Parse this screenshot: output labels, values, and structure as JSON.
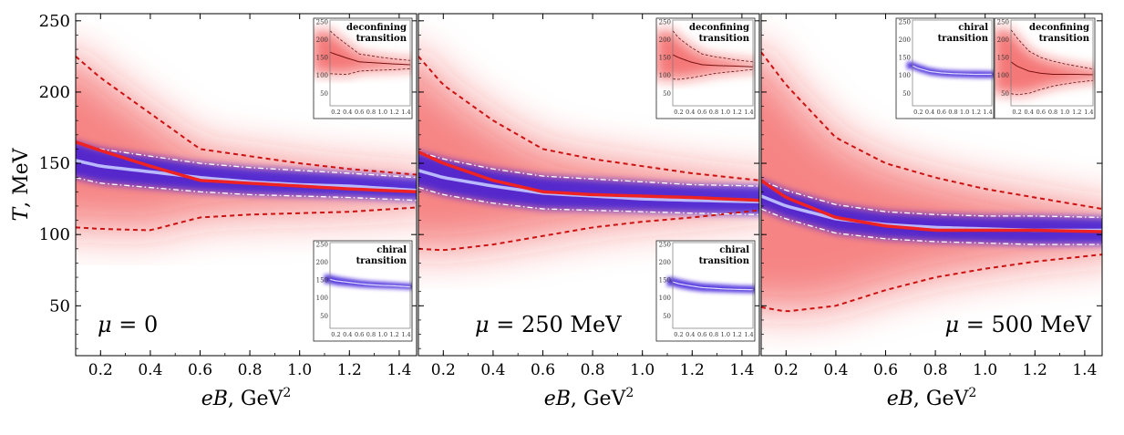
{
  "chart_data": {
    "type": "line",
    "description_axes": {
      "xlabel": "eB, GeV",
      "xlabel_exp": "2",
      "ylabel": "T, MeV",
      "xlim": [
        0.1,
        1.47
      ],
      "ylim": [
        15,
        255
      ],
      "x_ticks": [
        0.2,
        0.4,
        0.6,
        0.8,
        1.0,
        1.2,
        1.4
      ],
      "x_tick_labels": [
        "0.2",
        "0.4",
        "0.6",
        "0.8",
        "1.0",
        "1.2",
        "1.4"
      ],
      "y_ticks": [
        50,
        100,
        150,
        200,
        250
      ],
      "y_tick_labels": [
        "50",
        "100",
        "150",
        "200",
        "250"
      ]
    },
    "inset_axes": {
      "xlim": [
        0.1,
        1.47
      ],
      "ylim": [
        15,
        255
      ],
      "x_tick_labels": [
        "0.2",
        "0.4",
        "0.6",
        "0.8",
        "1.0",
        "1.2",
        "1.4"
      ],
      "y_tick_labels": [
        "50",
        "100",
        "150",
        "200",
        "250"
      ]
    },
    "panels": [
      {
        "label_symbol": "μ",
        "label_value": "= 0",
        "x": [
          0.1,
          0.2,
          0.4,
          0.6,
          0.8,
          1.0,
          1.2,
          1.47
        ],
        "series": [
          {
            "name": "deconfining transition",
            "values": [
              165,
              159,
              148,
              138,
              136,
              134,
              132,
              130
            ]
          },
          {
            "name": "deconfining upper bound",
            "values": [
              225,
              210,
              185,
              160,
              155,
              150,
              146,
              142
            ]
          },
          {
            "name": "deconfining lower bound",
            "values": [
              105,
              104,
              103,
              112,
              114,
              115,
              116,
              119
            ]
          },
          {
            "name": "chiral transition",
            "values": [
              152,
              148,
              144,
              140,
              137,
              135,
              134,
              131
            ]
          },
          {
            "name": "chiral upper bound",
            "values": [
              165,
              160,
              155,
              150,
              147,
              145,
              143,
              140
            ]
          },
          {
            "name": "chiral lower bound",
            "values": [
              140,
              136,
              133,
              130,
              128,
              127,
              126,
              124
            ]
          }
        ],
        "insets": [
          {
            "label": [
              "deconfining",
              "transition"
            ],
            "kind": "deconfining"
          },
          {
            "label": [
              "chiral",
              "transition"
            ],
            "kind": "chiral"
          }
        ]
      },
      {
        "label_symbol": "μ",
        "label_value": "= 250 MeV",
        "x": [
          0.1,
          0.2,
          0.4,
          0.6,
          0.8,
          1.0,
          1.2,
          1.47
        ],
        "series": [
          {
            "name": "deconfining transition",
            "values": [
              158,
              150,
              138,
              130,
              128,
              127,
              126,
              124
            ]
          },
          {
            "name": "deconfining upper bound",
            "values": [
              225,
              205,
              180,
              160,
              153,
              148,
              143,
              138
            ]
          },
          {
            "name": "deconfining lower bound",
            "values": [
              90,
              89,
              93,
              99,
              105,
              109,
              112,
              117
            ]
          },
          {
            "name": "chiral transition",
            "values": [
              145,
              140,
              134,
              129,
              127,
              125,
              124,
              123
            ]
          },
          {
            "name": "chiral upper bound",
            "values": [
              158,
              153,
              146,
              141,
              139,
              137,
              135,
              134
            ]
          },
          {
            "name": "chiral lower bound",
            "values": [
              133,
              128,
              122,
              118,
              117,
              116,
              115,
              114
            ]
          }
        ],
        "insets": [
          {
            "label": [
              "deconfining",
              "transition"
            ],
            "kind": "deconfining"
          },
          {
            "label": [
              "chiral",
              "transition"
            ],
            "kind": "chiral"
          }
        ]
      },
      {
        "label_symbol": "μ",
        "label_value": "= 500 MeV",
        "x": [
          0.1,
          0.2,
          0.4,
          0.6,
          0.8,
          1.0,
          1.2,
          1.47
        ],
        "series": [
          {
            "name": "deconfining transition",
            "values": [
              138,
              126,
              112,
              106,
              103,
              103,
              103,
              102
            ]
          },
          {
            "name": "deconfining upper bound",
            "values": [
              228,
              205,
              168,
              150,
              140,
              132,
              126,
              118
            ]
          },
          {
            "name": "deconfining lower bound",
            "values": [
              49,
              46,
              50,
              61,
              70,
              76,
              81,
              86
            ]
          },
          {
            "name": "chiral transition",
            "values": [
              127,
              120,
              111,
              107,
              105,
              104,
              103,
              103
            ]
          },
          {
            "name": "chiral upper bound",
            "values": [
              138,
              131,
              121,
              116,
              114,
              113,
              113,
              112
            ]
          },
          {
            "name": "chiral lower bound",
            "values": [
              118,
              111,
              101,
              97,
              95,
              94,
              93,
              93
            ]
          }
        ],
        "insets": [
          {
            "label": [
              "chiral",
              "transition"
            ],
            "kind": "chiral"
          },
          {
            "label": [
              "deconfining",
              "transition"
            ],
            "kind": "deconfining"
          }
        ]
      }
    ],
    "colors": {
      "deconfining": "#ee2222",
      "deconfining_dashed": "#cc1111",
      "chiral_line": "#b9b9ff",
      "chiral_band": "#3a1ad8",
      "axis": "#000000"
    }
  }
}
